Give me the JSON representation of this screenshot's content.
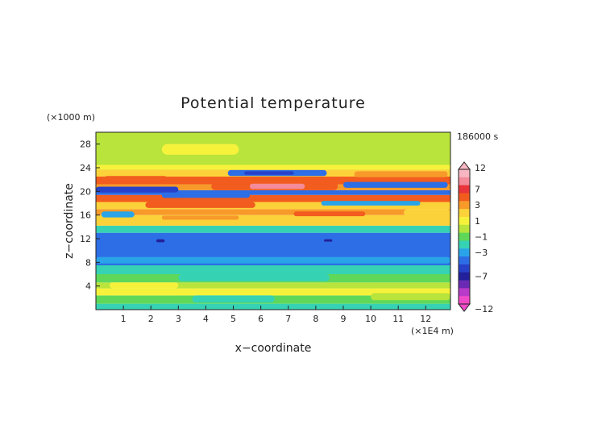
{
  "chart_data": {
    "type": "heatmap",
    "title": "Potential temperature",
    "xlabel": "x−coordinate",
    "ylabel": "z−coordinate",
    "x_unit": "(×1E4 m)",
    "y_unit": "(×1000 m)",
    "time_label": "186000 s",
    "xlim": [
      0,
      12.9
    ],
    "ylim": [
      0,
      30
    ],
    "x_ticks": [
      "1",
      "2",
      "3",
      "4",
      "5",
      "6",
      "7",
      "8",
      "9",
      "10",
      "11",
      "12"
    ],
    "y_ticks": [
      "4",
      "8",
      "12",
      "16",
      "20",
      "24",
      "28"
    ],
    "x_tick_values": [
      1,
      2,
      3,
      4,
      5,
      6,
      7,
      8,
      9,
      10,
      11,
      12
    ],
    "y_tick_values": [
      4,
      8,
      12,
      16,
      20,
      24,
      28
    ],
    "colorbar": {
      "labels": [
        "12",
        "7",
        "3",
        "1",
        "−1",
        "−3",
        "−7",
        "−12"
      ],
      "label_values": [
        12,
        7,
        3,
        1,
        -1,
        -3,
        -7,
        -12
      ],
      "levels": [
        {
          "value": 12,
          "color": "#f7b6c2"
        },
        {
          "value": 10,
          "color": "#f48b9a"
        },
        {
          "value": 7,
          "color": "#e8343a"
        },
        {
          "value": 5,
          "color": "#f25c1e"
        },
        {
          "value": 3,
          "color": "#f79a2a"
        },
        {
          "value": 2,
          "color": "#fcd23a"
        },
        {
          "value": 1,
          "color": "#f6f23c"
        },
        {
          "value": 0,
          "color": "#b8e43c"
        },
        {
          "value": -1,
          "color": "#5fd85a"
        },
        {
          "value": -2,
          "color": "#36d2b4"
        },
        {
          "value": -3,
          "color": "#2aa4e8"
        },
        {
          "value": -4,
          "color": "#2d6ee6"
        },
        {
          "value": -5,
          "color": "#2741c8"
        },
        {
          "value": -7,
          "color": "#22209a"
        },
        {
          "value": -9,
          "color": "#6a2ab4"
        },
        {
          "value": -11,
          "color": "#b83ac8"
        },
        {
          "value": -12,
          "color": "#f04ac8"
        }
      ]
    },
    "bands": [
      {
        "z0": 0,
        "z1": 1,
        "value": -2
      },
      {
        "z0": 1,
        "z1": 2.4,
        "value": -1
      },
      {
        "z0": 2.4,
        "z1": 3.6,
        "value": 1
      },
      {
        "z0": 3.6,
        "z1": 4.6,
        "value": 0
      },
      {
        "z0": 4.6,
        "z1": 6,
        "value": -1
      },
      {
        "z0": 6,
        "z1": 7.5,
        "value": -2
      },
      {
        "z0": 7.5,
        "z1": 13,
        "value": -4
      },
      {
        "z0": 13,
        "z1": 14.2,
        "value": -2
      },
      {
        "z0": 14.2,
        "z1": 16,
        "value": 2
      },
      {
        "z0": 16,
        "z1": 17,
        "value": 3
      },
      {
        "z0": 17,
        "z1": 18.2,
        "value": 2
      },
      {
        "z0": 18.2,
        "z1": 19.4,
        "value": 5
      },
      {
        "z0": 19.4,
        "z1": 20.2,
        "value": -4
      },
      {
        "z0": 20.2,
        "z1": 21.2,
        "value": 3
      },
      {
        "z0": 21.2,
        "z1": 22.5,
        "value": 5
      },
      {
        "z0": 22.5,
        "z1": 23.7,
        "value": 2
      },
      {
        "z0": 23.7,
        "z1": 30,
        "value": 0
      }
    ],
    "patches": [
      {
        "x0": 0,
        "x1": 12.9,
        "z0": 24.3,
        "z1": 30,
        "value": 0
      },
      {
        "x0": 2.4,
        "x1": 5.2,
        "z0": 26.2,
        "z1": 28,
        "value": 1
      },
      {
        "x0": 0,
        "x1": 12.9,
        "z0": 23.7,
        "z1": 24.5,
        "value": 1
      },
      {
        "x0": 4.8,
        "x1": 8.4,
        "z0": 22.6,
        "z1": 23.6,
        "value": -4
      },
      {
        "x0": 5.4,
        "x1": 7.2,
        "z0": 22.8,
        "z1": 23.4,
        "value": -5
      },
      {
        "x0": 0.3,
        "x1": 2.6,
        "z0": 21.6,
        "z1": 22.6,
        "value": 5
      },
      {
        "x0": 9.4,
        "x1": 12.8,
        "z0": 22.4,
        "z1": 23.4,
        "value": 3
      },
      {
        "x0": 4.2,
        "x1": 8.8,
        "z0": 20.2,
        "z1": 21.5,
        "value": 5
      },
      {
        "x0": 5.6,
        "x1": 7.6,
        "z0": 20.4,
        "z1": 21.3,
        "value": 10
      },
      {
        "x0": 0,
        "x1": 3,
        "z0": 19.8,
        "z1": 20.8,
        "value": -5
      },
      {
        "x0": 9,
        "x1": 12.8,
        "z0": 20.6,
        "z1": 21.6,
        "value": -4
      },
      {
        "x0": 2.4,
        "x1": 5.6,
        "z0": 18.9,
        "z1": 19.8,
        "value": -4
      },
      {
        "x0": 8.2,
        "x1": 11.8,
        "z0": 17.6,
        "z1": 18.4,
        "value": -3
      },
      {
        "x0": 1.8,
        "x1": 5.8,
        "z0": 17.2,
        "z1": 18.2,
        "value": 5
      },
      {
        "x0": 0.2,
        "x1": 1.4,
        "z0": 15.6,
        "z1": 16.6,
        "value": -3
      },
      {
        "x0": 11.2,
        "x1": 12.9,
        "z0": 15.8,
        "z1": 17,
        "value": 2
      },
      {
        "x0": 7.2,
        "x1": 9.8,
        "z0": 15.8,
        "z1": 16.6,
        "value": 5
      },
      {
        "x0": 2.4,
        "x1": 5.2,
        "z0": 15.2,
        "z1": 15.9,
        "value": 3
      },
      {
        "x0": 2.2,
        "x1": 2.5,
        "z0": 11.4,
        "z1": 11.9,
        "value": -7
      },
      {
        "x0": 8.3,
        "x1": 8.6,
        "z0": 11.5,
        "z1": 11.9,
        "value": -7
      },
      {
        "x0": 0,
        "x1": 12.9,
        "z0": 7.8,
        "z1": 8.9,
        "value": -3
      },
      {
        "x0": 3,
        "x1": 8.5,
        "z0": 4.8,
        "z1": 6,
        "value": -2
      },
      {
        "x0": 0.5,
        "x1": 3,
        "z0": 3.6,
        "z1": 4.6,
        "value": 1
      },
      {
        "x0": 3.5,
        "x1": 6.5,
        "z0": 1.2,
        "z1": 2.4,
        "value": -2
      },
      {
        "x0": 10,
        "x1": 12.9,
        "z0": 1.6,
        "z1": 2.8,
        "value": 0
      }
    ]
  }
}
